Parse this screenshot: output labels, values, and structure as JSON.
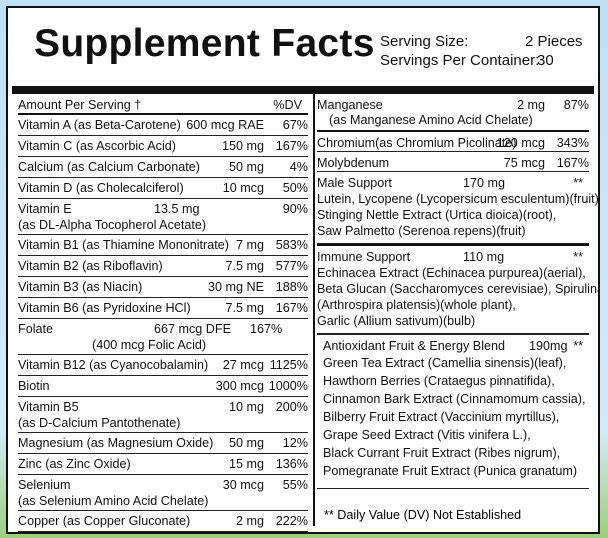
{
  "title": "Supplement Facts",
  "serving": {
    "size_label": "Serving Size:",
    "size_value": "2 Pieces",
    "per_container_label": "Servings Per Container:",
    "per_container_value": "30"
  },
  "header": {
    "amount": "Amount Per Serving †",
    "dv": "%DV"
  },
  "left_rows": [
    {
      "name": "Vitamin A (as Beta-Carotene)",
      "amount": "600 mcg RAE",
      "dv": "67%"
    },
    {
      "name": "Vitamin C (as Ascorbic Acid)",
      "amount": "150 mg",
      "dv": "167%"
    },
    {
      "name": "Calcium (as Calcium Carbonate)",
      "amount": "50 mg",
      "dv": "4%"
    },
    {
      "name": "Vitamin D (as Cholecalciferol)",
      "amount": "10 mcg",
      "dv": "50%"
    },
    {
      "name": "Vitamin E",
      "name2": "(as DL-Alpha Tocopherol Acetate)",
      "amount": "13.5 mg",
      "dv": "90%"
    },
    {
      "name": "Vitamin B1 (as Thiamine Mononitrate)",
      "amount": "7 mg",
      "dv": "583%"
    },
    {
      "name": "Vitamin B2 (as Riboflavin)",
      "amount": "7.5 mg",
      "dv": "577%"
    },
    {
      "name": "Vitamin B3 (as Niacin)",
      "amount": "30 mg NE",
      "dv": "188%"
    },
    {
      "name": "Vitamin B6 (as Pyridoxine HCl)",
      "amount": "7.5 mg",
      "dv": "167%"
    },
    {
      "name": "Folate",
      "name2": "(400 mcg Folic Acid)",
      "amount": "667 mcg DFE",
      "dv": "167%"
    },
    {
      "name": "Vitamin B12 (as Cyanocobalamin)",
      "amount": "27 mcg",
      "dv": "1125%"
    },
    {
      "name": "Biotin",
      "amount": "300 mcg",
      "dv": "1000%"
    },
    {
      "name": "Vitamin B5",
      "name2": "(as D-Calcium Pantothenate)",
      "amount": "10 mg",
      "dv": "200%"
    },
    {
      "name": "Magnesium (as Magnesium Oxide)",
      "amount": "50 mg",
      "dv": "12%"
    },
    {
      "name": "Zinc (as Zinc Oxide)",
      "amount": "15 mg",
      "dv": "136%"
    },
    {
      "name": "Selenium",
      "name2": "(as Selenium Amino Acid Chelate)",
      "amount": "30 mcg",
      "dv": "55%"
    },
    {
      "name": "Copper (as Copper Gluconate)",
      "amount": "2 mg",
      "dv": "222%"
    }
  ],
  "right_rows": [
    {
      "name": "Manganese",
      "name2": "(as Manganese Amino Acid Chelate)",
      "amount": "2 mg",
      "dv": "87%"
    },
    {
      "name": "Chromium(as Chromium Picolinate)",
      "amount": "120 mcg",
      "dv": "343%"
    },
    {
      "name": "Molybdenum",
      "amount": "75 mcg",
      "dv": "167%"
    }
  ],
  "blends": [
    {
      "name": "Male Support",
      "amount": "170 mg",
      "dv": "**",
      "lines": [
        "Lutein, Lycopene (Lycopersicum esculentum)(fruit),",
        "Stinging Nettle Extract (Urtica dioica)(root),",
        "Saw Palmetto (Serenoa repens)(fruit)"
      ]
    },
    {
      "name": "Immune Support",
      "amount": "110 mg",
      "dv": "**",
      "lines": [
        "Echinacea Extract (Echinacea purpurea)(aerial),",
        "Beta Glucan (Saccharomyces cerevisiae), Spirulina",
        "(Arthrospira platensis)(whole plant),",
        "Garlic (Allium sativum)(bulb)"
      ]
    },
    {
      "name": "Antioxidant Fruit & Energy Blend",
      "amount": "190mg",
      "dv": "**",
      "lines": [
        "Green Tea Extract (Camellia sinensis)(leaf),",
        "Hawthorn Berries (Crataegus pinnatifida),",
        "Cinnamon Bark Extract (Cinnamomum cassia),",
        "Bilberry Fruit Extract (Vaccinium myrtillus),",
        "Grape Seed Extract (Vitis vinifera L.),",
        "Black Currant Fruit Extract (Ribes nigrum),",
        "Pomegranate Fruit Extract (Punica granatum)"
      ]
    }
  ],
  "footnote": "** Daily Value (DV) Not Established"
}
